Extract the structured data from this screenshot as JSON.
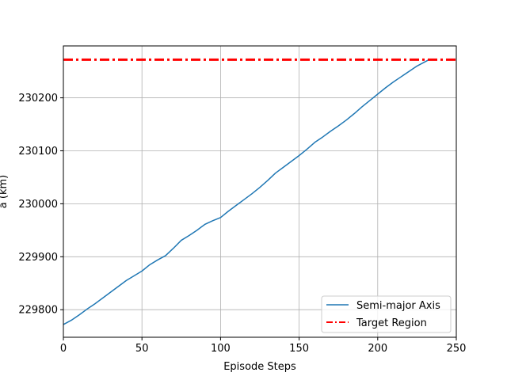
{
  "chart_data": {
    "type": "line",
    "title": "",
    "xlabel": "Episode Steps",
    "ylabel": "a (km)",
    "xlim": [
      0,
      250
    ],
    "ylim": [
      229748,
      230298
    ],
    "xticks": [
      0,
      50,
      100,
      150,
      200,
      250
    ],
    "yticks": [
      229800,
      229900,
      230000,
      230100,
      230200
    ],
    "grid": true,
    "legend_position": "lower-right",
    "series": [
      {
        "name": "Semi-major Axis",
        "color": "#1f77b4",
        "style": "solid",
        "x": [
          0,
          5,
          10,
          15,
          20,
          25,
          30,
          35,
          40,
          45,
          50,
          55,
          60,
          65,
          70,
          75,
          80,
          85,
          90,
          95,
          100,
          105,
          110,
          115,
          120,
          125,
          130,
          135,
          140,
          145,
          150,
          155,
          160,
          165,
          170,
          175,
          180,
          185,
          190,
          195,
          200,
          205,
          210,
          215,
          220,
          225,
          232
        ],
        "y": [
          229772,
          229780,
          229790,
          229801,
          229811,
          229822,
          229833,
          229844,
          229855,
          229864,
          229873,
          229885,
          229894,
          229902,
          229916,
          229931,
          229940,
          229950,
          229961,
          229968,
          229974,
          229986,
          229997,
          230008,
          230019,
          230031,
          230044,
          230058,
          230069,
          230080,
          230091,
          230103,
          230116,
          230126,
          230137,
          230147,
          230158,
          230170,
          230183,
          230195,
          230207,
          230219,
          230230,
          230240,
          230250,
          230260,
          230271
        ]
      },
      {
        "name": "Target Region",
        "color": "#ff0000",
        "style": "dashdot",
        "y_constant": 230272
      }
    ]
  }
}
